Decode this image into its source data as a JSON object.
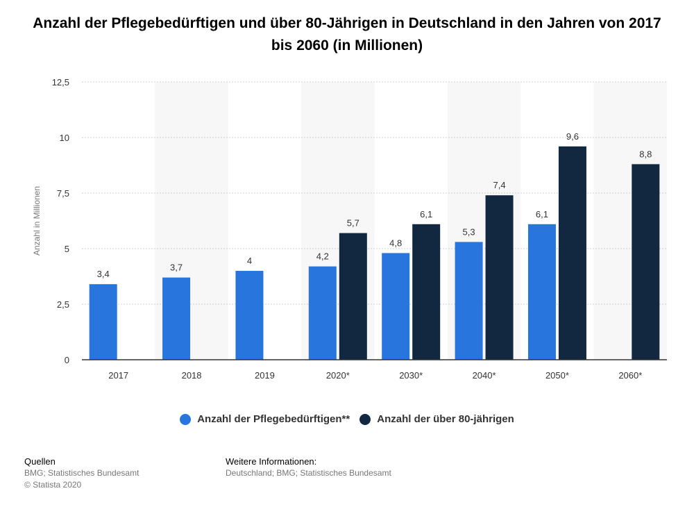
{
  "title": "Anzahl der Pflegebedürftigen und über 80-Jährigen in Deutschland in den Jahren von 2017 bis 2060 (in Millionen)",
  "colors": {
    "series1": "#2876dd",
    "series2": "#122740",
    "grid": "#cfcfcf",
    "band": "#f7f7f7",
    "axis": "#333333",
    "text": "#333333"
  },
  "chart_data": {
    "type": "bar",
    "title": "Anzahl der Pflegebedürftigen und über 80-Jährigen in Deutschland in den Jahren von 2017 bis 2060 (in Millionen)",
    "xlabel": "",
    "ylabel": "Anzahl in Millionen",
    "ylim": [
      0,
      12.5
    ],
    "yticks": [
      0,
      2.5,
      5,
      7.5,
      10,
      12.5
    ],
    "ytick_labels": [
      "0",
      "2,5",
      "5",
      "7,5",
      "10",
      "12,5"
    ],
    "categories": [
      "2017",
      "2018",
      "2019",
      "2020*",
      "2030*",
      "2040*",
      "2050*",
      "2060*"
    ],
    "series": [
      {
        "name": "Anzahl der Pflegebedürftigen**",
        "values": [
          3.4,
          3.7,
          4.0,
          4.2,
          4.8,
          5.3,
          6.1,
          null
        ],
        "labels": [
          "3,4",
          "3,7",
          "4",
          "4,2",
          "4,8",
          "5,3",
          "6,1",
          null
        ]
      },
      {
        "name": "Anzahl der über 80-jährigen",
        "values": [
          null,
          null,
          null,
          5.7,
          6.1,
          7.4,
          9.6,
          8.8
        ],
        "labels": [
          null,
          null,
          null,
          "5,7",
          "6,1",
          "7,4",
          "9,6",
          "8,8"
        ]
      }
    ],
    "grid": true,
    "legend_position": "bottom"
  },
  "footer": {
    "sources_heading": "Quellen",
    "sources_line1": "BMG; Statistisches Bundesamt",
    "sources_line2": "© Statista 2020",
    "info_heading": "Weitere Informationen:",
    "info_line1": "Deutschland; BMG; Statistisches Bundesamt"
  }
}
